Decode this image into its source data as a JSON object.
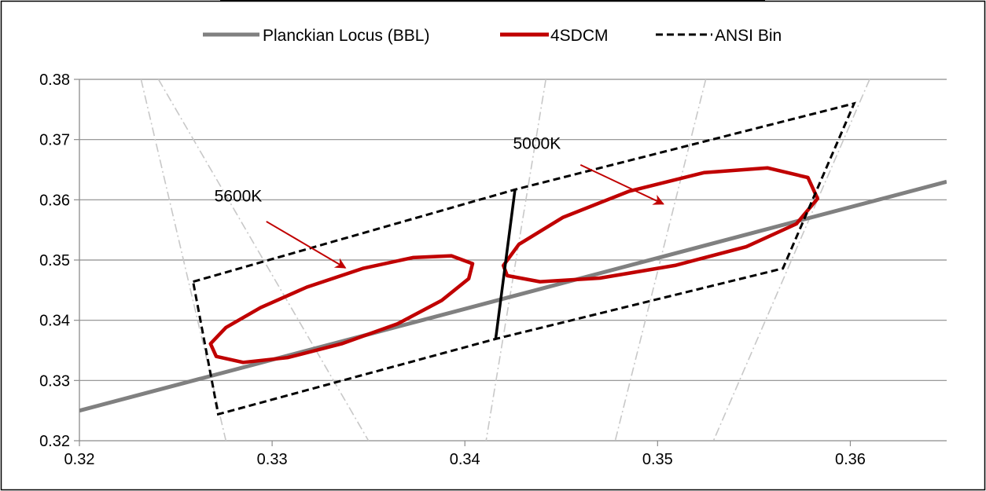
{
  "chart_data": {
    "type": "line",
    "title": "",
    "xlabel": "",
    "ylabel": "",
    "xlim": [
      0.32,
      0.365
    ],
    "ylim": [
      0.32,
      0.38
    ],
    "x_ticks": [
      0.32,
      0.33,
      0.34,
      0.35,
      0.36
    ],
    "x_tick_labels": [
      "0.32",
      "0.33",
      "0.34",
      "0.35",
      "0.36"
    ],
    "y_ticks": [
      0.32,
      0.33,
      0.34,
      0.35,
      0.36,
      0.37,
      0.38
    ],
    "y_tick_labels": [
      "0.32",
      "0.33",
      "0.34",
      "0.35",
      "0.36",
      "0.37",
      "0.38"
    ],
    "grid": "horizontal",
    "legend_position": "top",
    "series": [
      {
        "name": "Planckian Locus (BBL)",
        "style": "solid",
        "color": "#808080",
        "points": [
          [
            0.32,
            0.325
          ],
          [
            0.365,
            0.363
          ]
        ]
      },
      {
        "name": "4SDCM",
        "style": "ellipse",
        "color": "#C00000",
        "ellipses": [
          {
            "label": "5600K",
            "points": [
              [
                0.3268,
                0.3361
              ],
              [
                0.3276,
                0.3388
              ],
              [
                0.3294,
                0.3421
              ],
              [
                0.3318,
                0.3455
              ],
              [
                0.3347,
                0.3486
              ],
              [
                0.3373,
                0.3504
              ],
              [
                0.3393,
                0.3507
              ],
              [
                0.3404,
                0.3494
              ],
              [
                0.3402,
                0.3469
              ],
              [
                0.3388,
                0.3433
              ],
              [
                0.3365,
                0.3394
              ],
              [
                0.3336,
                0.3361
              ],
              [
                0.3308,
                0.3338
              ],
              [
                0.3285,
                0.333
              ],
              [
                0.3271,
                0.334
              ],
              [
                0.3268,
                0.3361
              ]
            ]
          },
          {
            "label": "5000K",
            "points": [
              [
                0.342,
                0.3491
              ],
              [
                0.3428,
                0.3526
              ],
              [
                0.3451,
                0.3571
              ],
              [
                0.3485,
                0.3614
              ],
              [
                0.3524,
                0.3645
              ],
              [
                0.3557,
                0.3653
              ],
              [
                0.3578,
                0.3637
              ],
              [
                0.3583,
                0.3602
              ],
              [
                0.3572,
                0.356
              ],
              [
                0.3546,
                0.3522
              ],
              [
                0.3509,
                0.3491
              ],
              [
                0.347,
                0.347
              ],
              [
                0.3439,
                0.3464
              ],
              [
                0.3422,
                0.3474
              ],
              [
                0.342,
                0.3491
              ]
            ]
          }
        ]
      },
      {
        "name": "ANSI Bin",
        "style": "dashed",
        "color": "#000000",
        "points": [
          [
            0.3259,
            0.3464
          ],
          [
            0.3426,
            0.3617
          ],
          [
            0.3602,
            0.376
          ],
          [
            0.3565,
            0.3486
          ],
          [
            0.3416,
            0.3369
          ],
          [
            0.3272,
            0.3244
          ],
          [
            0.3259,
            0.3464
          ]
        ]
      },
      {
        "name": "",
        "style": "solid",
        "color": "#000000",
        "points": [
          [
            0.3426,
            0.3617
          ],
          [
            0.3416,
            0.3369
          ]
        ]
      }
    ],
    "isotherms": [
      [
        [
          0.3232,
          0.38
        ],
        [
          0.3276,
          0.32
        ]
      ],
      [
        [
          0.3241,
          0.38
        ],
        [
          0.335,
          0.32
        ]
      ],
      [
        [
          0.3442,
          0.38
        ],
        [
          0.3411,
          0.32
        ]
      ],
      [
        [
          0.3525,
          0.38
        ],
        [
          0.3478,
          0.32
        ]
      ],
      [
        [
          0.361,
          0.38
        ],
        [
          0.3529,
          0.32
        ]
      ]
    ],
    "annotations": [
      {
        "text": "5600K",
        "text_at": [
          0.327,
          0.3606
        ],
        "arrow_from": [
          0.3297,
          0.3564
        ],
        "arrow_to": [
          0.3338,
          0.3487
        ]
      },
      {
        "text": "5000K",
        "text_at": [
          0.3425,
          0.3694
        ],
        "arrow_from": [
          0.346,
          0.3658
        ],
        "arrow_to": [
          0.3503,
          0.3593
        ]
      }
    ]
  }
}
